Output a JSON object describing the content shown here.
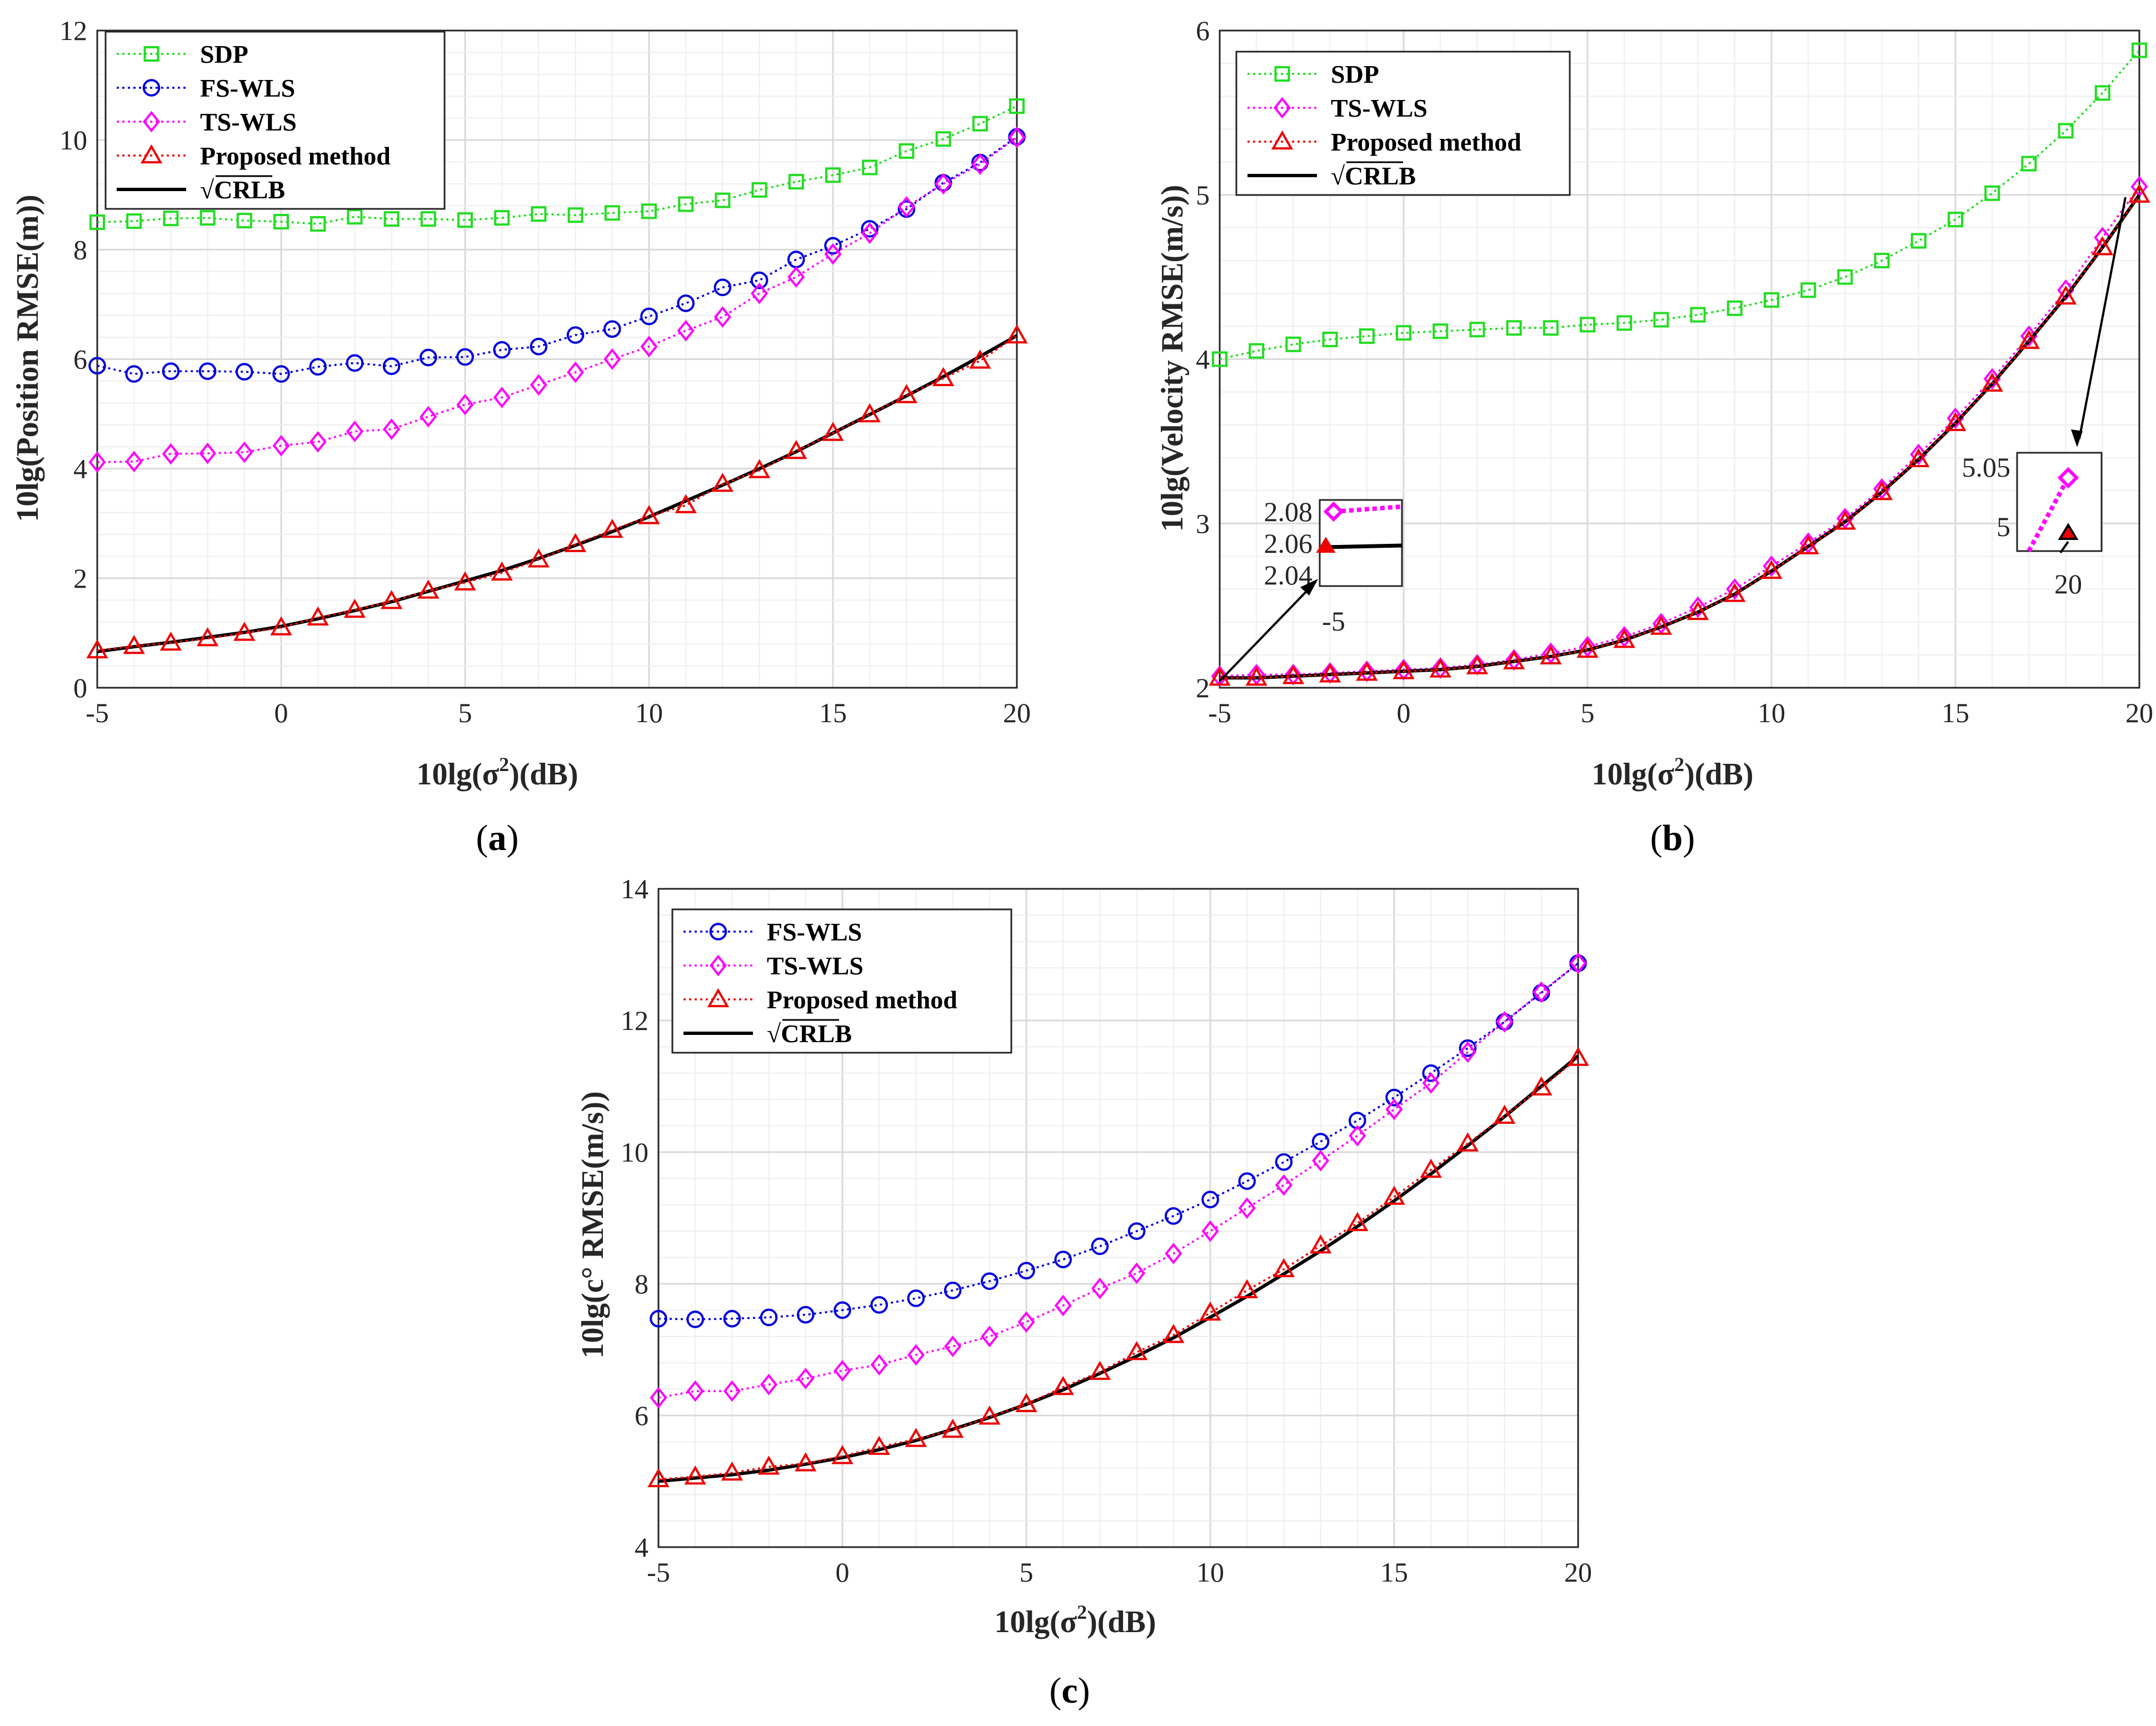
{
  "colors": {
    "sdp": "#22dd22",
    "fswls": "#0000dd",
    "tswls": "#ff00ff",
    "proposed": "#ee0000",
    "crlb": "#000000",
    "grid": "#d9d9d9",
    "minorgrid": "#eeeeee"
  },
  "chart_data": [
    {
      "id": "a",
      "type": "line",
      "caption": "a",
      "xlabel": "10lg(σ²)(dB)",
      "ylabel": "10lg(Position RMSE(m))",
      "xlim": [
        -5,
        20
      ],
      "ylim": [
        0,
        12
      ],
      "xticks": [
        "-5",
        "0",
        "5",
        "10",
        "15",
        "20"
      ],
      "yticks": [
        "0",
        "2",
        "4",
        "6",
        "8",
        "10",
        "12"
      ],
      "x": [
        -5,
        -4,
        -3,
        -2,
        -1,
        0,
        1,
        2,
        3,
        4,
        5,
        6,
        7,
        8,
        9,
        10,
        11,
        12,
        13,
        14,
        15,
        16,
        17,
        18,
        19,
        20
      ],
      "legend": [
        "SDP",
        "FS-WLS",
        "TS-WLS",
        "Proposed method",
        "√CRLB"
      ],
      "series": [
        {
          "name": "SDP",
          "key": "sdp",
          "marker": "square",
          "values": [
            8.5,
            8.52,
            8.57,
            8.58,
            8.53,
            8.51,
            8.47,
            8.6,
            8.56,
            8.56,
            8.54,
            8.58,
            8.65,
            8.63,
            8.67,
            8.7,
            8.83,
            8.9,
            9.09,
            9.24,
            9.36,
            9.5,
            9.8,
            10.02,
            10.3,
            10.62
          ]
        },
        {
          "name": "FS-WLS",
          "key": "fswls",
          "marker": "circle",
          "values": [
            5.88,
            5.73,
            5.78,
            5.78,
            5.77,
            5.73,
            5.86,
            5.93,
            5.87,
            6.03,
            6.04,
            6.17,
            6.23,
            6.44,
            6.55,
            6.78,
            7.02,
            7.31,
            7.44,
            7.82,
            8.07,
            8.38,
            8.74,
            9.22,
            9.59,
            10.06
          ]
        },
        {
          "name": "TS-WLS",
          "key": "tswls",
          "marker": "diamond",
          "values": [
            4.12,
            4.13,
            4.27,
            4.28,
            4.3,
            4.42,
            4.49,
            4.68,
            4.72,
            4.95,
            5.17,
            5.3,
            5.53,
            5.76,
            6.0,
            6.23,
            6.52,
            6.77,
            7.2,
            7.5,
            7.92,
            8.3,
            8.78,
            9.2,
            9.56,
            10.05
          ]
        },
        {
          "name": "Proposed method",
          "key": "proposed",
          "marker": "triangle",
          "values": [
            0.68,
            0.76,
            0.82,
            0.9,
            1.0,
            1.1,
            1.28,
            1.42,
            1.58,
            1.77,
            1.92,
            2.1,
            2.34,
            2.62,
            2.88,
            3.13,
            3.33,
            3.72,
            3.97,
            4.32,
            4.65,
            4.99,
            5.34,
            5.65,
            5.97,
            6.43
          ]
        },
        {
          "name": "√CRLB",
          "key": "crlb",
          "marker": "none",
          "values": [
            0.66,
            0.75,
            0.83,
            0.92,
            1.01,
            1.12,
            1.26,
            1.41,
            1.57,
            1.76,
            1.95,
            2.14,
            2.36,
            2.6,
            2.85,
            3.12,
            3.41,
            3.7,
            4.0,
            4.31,
            4.65,
            4.99,
            5.33,
            5.68,
            6.05,
            6.43
          ]
        }
      ]
    },
    {
      "id": "b",
      "type": "line",
      "caption": "b",
      "xlabel": "10lg(σ²)(dB)",
      "ylabel": "10lg(Velocity RMSE(m/s))",
      "xlim": [
        -5,
        20
      ],
      "ylim": [
        2,
        6
      ],
      "xticks": [
        "-5",
        "0",
        "5",
        "10",
        "15",
        "20"
      ],
      "yticks": [
        "2",
        "3",
        "4",
        "5",
        "6"
      ],
      "x": [
        -5,
        -4,
        -3,
        -2,
        -1,
        0,
        1,
        2,
        3,
        4,
        5,
        6,
        7,
        8,
        9,
        10,
        11,
        12,
        13,
        14,
        15,
        16,
        17,
        18,
        19,
        20
      ],
      "legend": [
        "SDP",
        "TS-WLS",
        "Proposed method",
        "√CRLB"
      ],
      "series": [
        {
          "name": "SDP",
          "key": "sdp",
          "marker": "square",
          "values": [
            4.0,
            4.05,
            4.09,
            4.12,
            4.14,
            4.16,
            4.17,
            4.18,
            4.19,
            4.19,
            4.21,
            4.22,
            4.24,
            4.27,
            4.31,
            4.36,
            4.42,
            4.5,
            4.6,
            4.72,
            4.85,
            5.01,
            5.19,
            5.39,
            5.62,
            5.88
          ]
        },
        {
          "name": "TS-WLS",
          "key": "tswls",
          "marker": "diamond",
          "values": [
            2.07,
            2.08,
            2.08,
            2.09,
            2.1,
            2.11,
            2.12,
            2.14,
            2.17,
            2.21,
            2.25,
            2.31,
            2.39,
            2.49,
            2.6,
            2.74,
            2.88,
            3.03,
            3.21,
            3.42,
            3.64,
            3.88,
            4.14,
            4.42,
            4.74,
            5.05
          ]
        },
        {
          "name": "Proposed method",
          "key": "proposed",
          "marker": "triangle",
          "values": [
            2.06,
            2.06,
            2.07,
            2.08,
            2.09,
            2.1,
            2.11,
            2.13,
            2.16,
            2.19,
            2.23,
            2.29,
            2.37,
            2.46,
            2.57,
            2.71,
            2.86,
            3.01,
            3.19,
            3.39,
            3.61,
            3.85,
            4.11,
            4.38,
            4.68,
            5.0
          ]
        },
        {
          "name": "√CRLB",
          "key": "crlb",
          "marker": "none",
          "values": [
            2.06,
            2.06,
            2.07,
            2.08,
            2.09,
            2.1,
            2.11,
            2.13,
            2.16,
            2.19,
            2.23,
            2.29,
            2.37,
            2.46,
            2.57,
            2.71,
            2.86,
            3.01,
            3.19,
            3.39,
            3.61,
            3.85,
            4.11,
            4.38,
            4.68,
            5.0
          ]
        }
      ],
      "insets": [
        {
          "id": "left",
          "yticks": [
            "2.08",
            "2.06",
            "2.04"
          ],
          "xticks": [
            "-5"
          ],
          "tswls_value": 2.08,
          "proposed_value": 2.06
        },
        {
          "id": "right",
          "yticks": [
            "5.05",
            "5"
          ],
          "xticks": [
            "20"
          ],
          "tswls_value": 5.05,
          "proposed_value": 5.0
        }
      ]
    },
    {
      "id": "c",
      "type": "line",
      "caption": "c",
      "xlabel": "10lg(σ²)(dB)",
      "ylabel": "10lg(c° RMSE(m/s))",
      "xlim": [
        -5,
        20
      ],
      "ylim": [
        4,
        14
      ],
      "xticks": [
        "-5",
        "0",
        "5",
        "10",
        "15",
        "20"
      ],
      "yticks": [
        "4",
        "6",
        "8",
        "10",
        "12",
        "14"
      ],
      "x": [
        -5,
        -4,
        -3,
        -2,
        -1,
        0,
        1,
        2,
        3,
        4,
        5,
        6,
        7,
        8,
        9,
        10,
        11,
        12,
        13,
        14,
        15,
        16,
        17,
        18,
        19,
        20
      ],
      "legend": [
        "FS-WLS",
        "TS-WLS",
        "Proposed method",
        "√CRLB"
      ],
      "series": [
        {
          "name": "FS-WLS",
          "key": "fswls",
          "marker": "circle",
          "values": [
            7.47,
            7.46,
            7.47,
            7.49,
            7.53,
            7.6,
            7.68,
            7.78,
            7.9,
            8.04,
            8.2,
            8.37,
            8.57,
            8.8,
            9.03,
            9.28,
            9.56,
            9.85,
            10.16,
            10.48,
            10.83,
            11.2,
            11.58,
            11.98,
            12.42,
            12.87
          ]
        },
        {
          "name": "TS-WLS",
          "key": "tswls",
          "marker": "diamond",
          "values": [
            6.27,
            6.37,
            6.37,
            6.47,
            6.56,
            6.68,
            6.77,
            6.92,
            7.05,
            7.2,
            7.42,
            7.67,
            7.93,
            8.16,
            8.46,
            8.8,
            9.15,
            9.5,
            9.87,
            10.25,
            10.65,
            11.05,
            11.52,
            11.98,
            12.43,
            12.87
          ]
        },
        {
          "name": "Proposed method",
          "key": "proposed",
          "marker": "triangle",
          "values": [
            5.03,
            5.07,
            5.13,
            5.22,
            5.27,
            5.38,
            5.52,
            5.64,
            5.78,
            5.98,
            6.17,
            6.43,
            6.66,
            6.96,
            7.22,
            7.56,
            7.9,
            8.22,
            8.58,
            8.92,
            9.32,
            9.73,
            10.13,
            10.55,
            10.98,
            11.43
          ]
        },
        {
          "name": "√CRLB",
          "key": "crlb",
          "marker": "none",
          "values": [
            5.0,
            5.05,
            5.1,
            5.17,
            5.26,
            5.36,
            5.48,
            5.62,
            5.79,
            5.97,
            6.17,
            6.39,
            6.64,
            6.9,
            7.18,
            7.49,
            7.81,
            8.15,
            8.5,
            8.87,
            9.26,
            9.67,
            10.1,
            10.54,
            11.0,
            11.46
          ]
        }
      ]
    }
  ]
}
